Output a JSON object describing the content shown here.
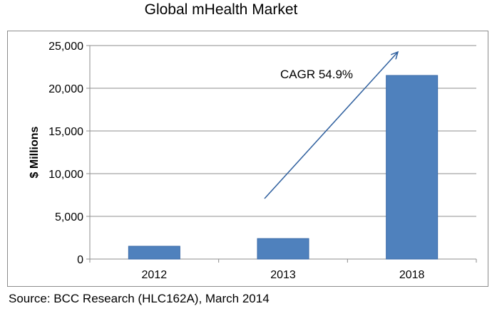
{
  "chart_data": {
    "type": "bar",
    "title": "Global mHealth Market",
    "categories": [
      "2012",
      "2013",
      "2018"
    ],
    "values": [
      1500,
      2400,
      21500
    ],
    "ylabel": "$ Millions",
    "xlabel": "",
    "ylim": [
      0,
      25000
    ],
    "yticks": [
      0,
      5000,
      10000,
      15000,
      20000,
      25000
    ],
    "ytick_labels": [
      "0",
      "5,000",
      "10,000",
      "15,000",
      "20,000",
      "25,000"
    ],
    "grid": true,
    "legend": "none",
    "bar_color": "#4f81bd",
    "annotation": {
      "text": "CAGR 54.9%",
      "arrow": true,
      "arrow_color": "#2e5f9e"
    }
  },
  "source_note": "Source: BCC Research (HLC162A), March 2014"
}
